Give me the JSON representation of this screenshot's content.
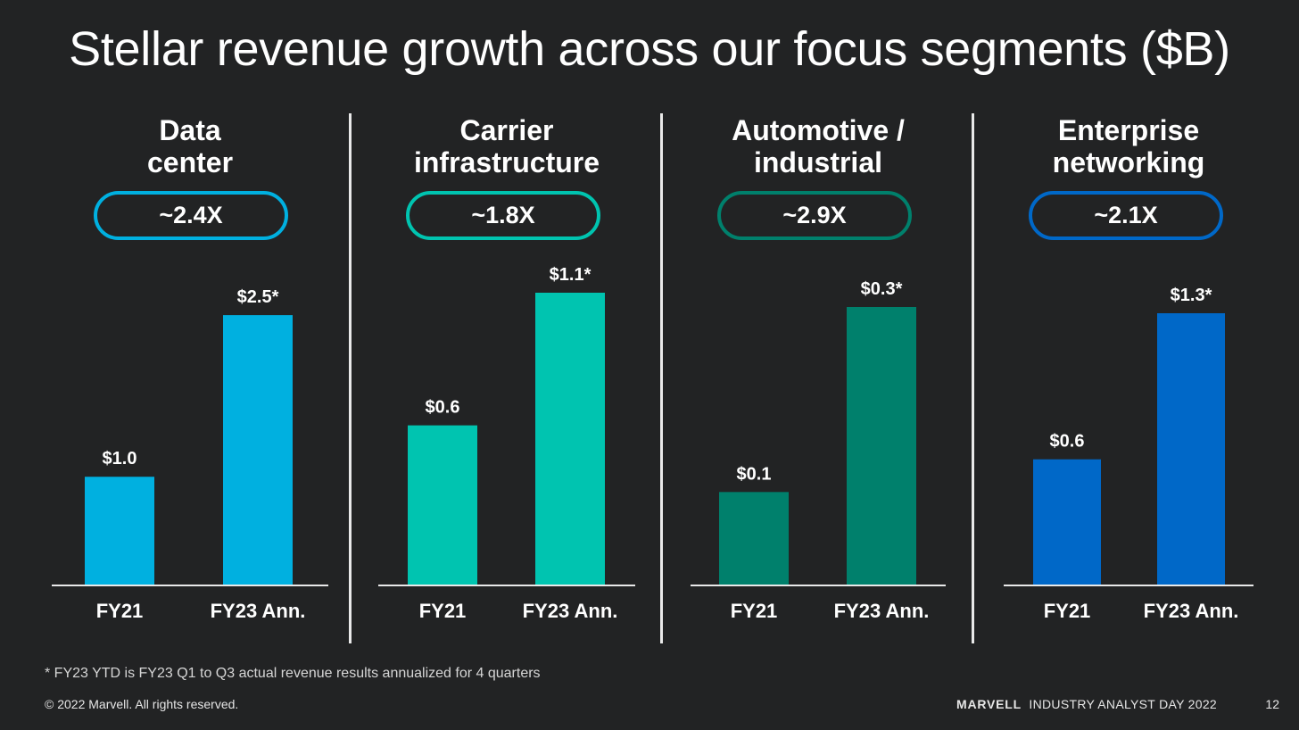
{
  "slide": {
    "title": "Stellar revenue growth across our focus segments ($B)",
    "footnote": "* FY23 YTD is FY23 Q1 to Q3 actual revenue results annualized for 4 quarters",
    "copyright": "© 2022 Marvell. All rights reserved.",
    "brand": "MARVELL",
    "event": "INDUSTRY ANALYST DAY 2022",
    "page_number": "12"
  },
  "chart_data": [
    {
      "type": "bar",
      "title": "Data\ncenter",
      "multiplier": "~2.4X",
      "color": "#00B0E0",
      "categories": [
        "FY21",
        "FY23 Ann."
      ],
      "values": [
        1.0,
        2.5
      ],
      "data_labels": [
        "$1.0",
        "$2.5*"
      ],
      "ylim": [
        0,
        2.65
      ]
    },
    {
      "type": "bar",
      "title": "Carrier\ninfrastructure",
      "multiplier": "~1.8X",
      "color": "#00C4B0",
      "categories": [
        "FY21",
        "FY23 Ann."
      ],
      "values": [
        0.6,
        1.1
      ],
      "data_labels": [
        "$0.6",
        "$1.1*"
      ],
      "ylim": [
        0,
        1.1
      ]
    },
    {
      "type": "bar",
      "title": "Automotive /\nindustrial",
      "multiplier": "~2.9X",
      "color": "#00806C",
      "categories": [
        "FY21",
        "FY23 Ann."
      ],
      "values": [
        0.1,
        0.3
      ],
      "data_labels": [
        "$0.1",
        "$0.3*"
      ],
      "ylim": [
        0,
        0.3
      ]
    },
    {
      "type": "bar",
      "title": "Enterprise\nnetworking",
      "multiplier": "~2.1X",
      "color": "#0068C8",
      "categories": [
        "FY21",
        "FY23 Ann."
      ],
      "values": [
        0.6,
        1.3
      ],
      "data_labels": [
        "$0.6",
        "$1.3*"
      ],
      "ylim": [
        0,
        1.3
      ]
    }
  ]
}
